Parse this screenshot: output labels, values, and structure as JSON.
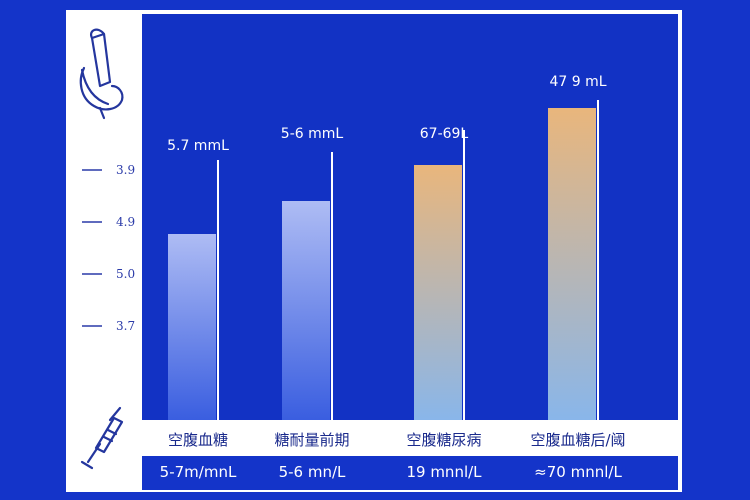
{
  "chart_data": {
    "type": "bar",
    "categories": [
      "空腹血糖",
      "糖耐量前期",
      "空腹糖尿病",
      "空腹血糖后/阈"
    ],
    "value_labels": [
      "5.7 mmL",
      "5-6 mmL",
      "67-69L",
      "47 9 mL"
    ],
    "units_row": [
      "5-7m/mnL",
      "5-6 mn/L",
      "19 mnnl/L",
      "≈70 mnnl/L"
    ],
    "values": [
      6.2,
      7.3,
      8.5,
      10.4
    ],
    "ylim": [
      0,
      13
    ],
    "yticks": [
      "3.9",
      "4.9",
      "5.0",
      "3.7"
    ],
    "grid": false,
    "legend": "none",
    "colors": {
      "background": "#1434c9",
      "plot_bg": "#1232c4",
      "bar_blue_top": "#aebcf4",
      "bar_blue_bottom": "#3a5ee0",
      "bar_warm_top": "#e9b67c",
      "bar_warm_bottom": "#89b6ea"
    }
  },
  "icons": {
    "top": "test-tube-icon",
    "bottom": "syringe-icon"
  }
}
